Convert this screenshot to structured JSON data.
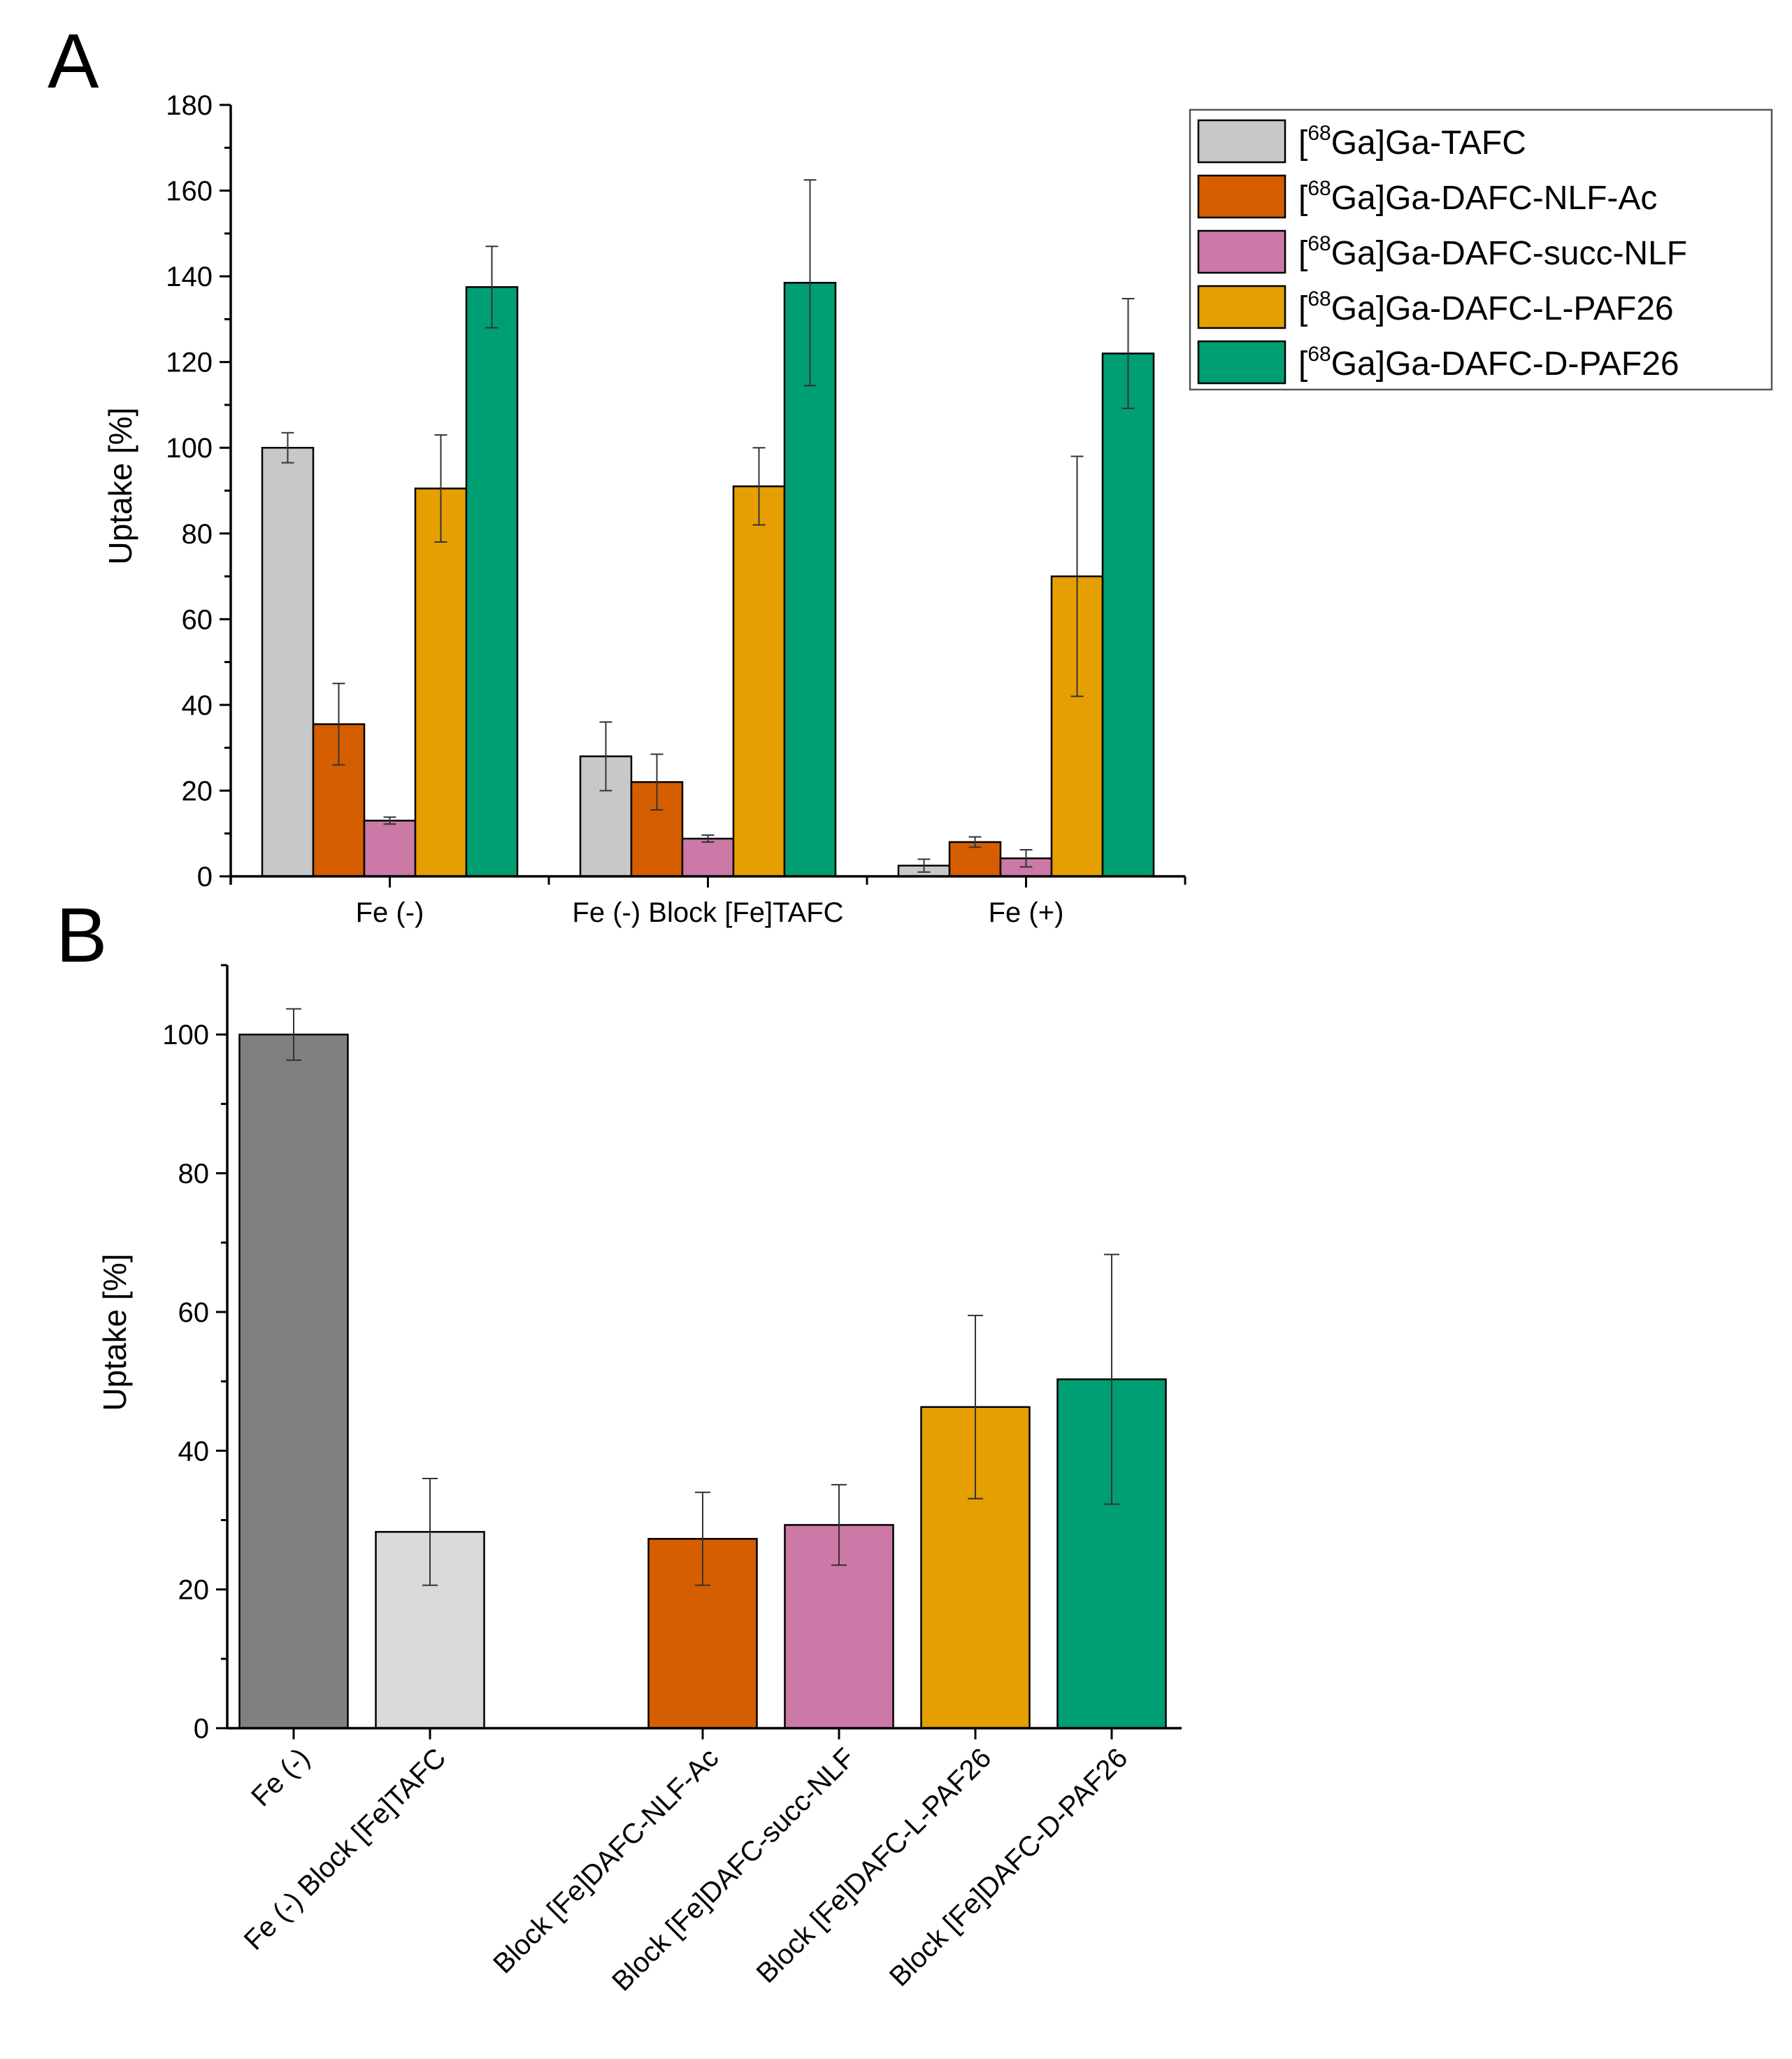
{
  "chart_data": [
    {
      "panel": "A",
      "type": "bar",
      "ylabel": "Uptake [%]",
      "ylim": [
        0,
        180
      ],
      "yticks": [
        0,
        20,
        40,
        60,
        80,
        100,
        120,
        140,
        160,
        180
      ],
      "categories": [
        "Fe (-)",
        "Fe (-) Block [Fe]TAFC",
        "Fe (+)"
      ],
      "legend_position": "top-right",
      "series": [
        {
          "name": "[68Ga]Ga-TAFC",
          "legend_prefix": "[",
          "legend_sup": "68",
          "legend_suffix": "Ga]Ga-TAFC",
          "color": "#c8c8c8",
          "values": [
            100,
            28,
            2.5
          ],
          "errors": [
            3.5,
            8,
            1.5
          ]
        },
        {
          "name": "[68Ga]Ga-DAFC-NLF-Ac",
          "legend_prefix": "[",
          "legend_sup": "68",
          "legend_suffix": "Ga]Ga-DAFC-NLF-Ac",
          "color": "#d55e00",
          "values": [
            35.5,
            22,
            8
          ],
          "errors": [
            9.5,
            6.5,
            1.2
          ]
        },
        {
          "name": "[68Ga]Ga-DAFC-succ-NLF",
          "legend_prefix": "[",
          "legend_sup": "68",
          "legend_suffix": "Ga]Ga-DAFC-succ-NLF",
          "color": "#cc79a7",
          "values": [
            13,
            8.8,
            4.2
          ],
          "errors": [
            0.8,
            0.8,
            2
          ]
        },
        {
          "name": "[68Ga]Ga-DAFC-L-PAF26",
          "legend_prefix": "[",
          "legend_sup": "68",
          "legend_suffix": "Ga]Ga-DAFC-L-PAF26",
          "color": "#e69f00",
          "values": [
            90.5,
            91,
            70
          ],
          "errors": [
            12.5,
            9,
            28
          ]
        },
        {
          "name": "[68Ga]Ga-DAFC-D-PAF26",
          "legend_prefix": "[",
          "legend_sup": "68",
          "legend_suffix": "Ga]Ga-DAFC-D-PAF26",
          "color": "#009e73",
          "values": [
            137.5,
            138.5,
            122
          ],
          "errors": [
            9.5,
            24,
            12.8
          ]
        }
      ]
    },
    {
      "panel": "B",
      "type": "bar",
      "ylabel": "Uptake [%]",
      "ylim": [
        0,
        110
      ],
      "yticks": [
        0,
        20,
        40,
        60,
        80,
        100
      ],
      "categories": [
        "Fe (-)",
        "Fe (-) Block [Fe]TAFC",
        "Block [Fe]DAFC-NLF-Ac",
        "Block [Fe]DAFC-succ-NLF",
        "Block [Fe]DAFC-L-PAF26",
        "Block [Fe]DAFC-D-PAF26"
      ],
      "values": [
        100,
        28.3,
        27.3,
        29.3,
        46.3,
        50.3
      ],
      "errors": [
        3.7,
        7.7,
        6.7,
        5.8,
        13.2,
        18
      ],
      "colors": [
        "#808080",
        "#d9d9d9",
        "#d55e00",
        "#cc79a7",
        "#e69f00",
        "#009e73"
      ],
      "positions": [
        0,
        1,
        3,
        4,
        5,
        6
      ]
    }
  ]
}
